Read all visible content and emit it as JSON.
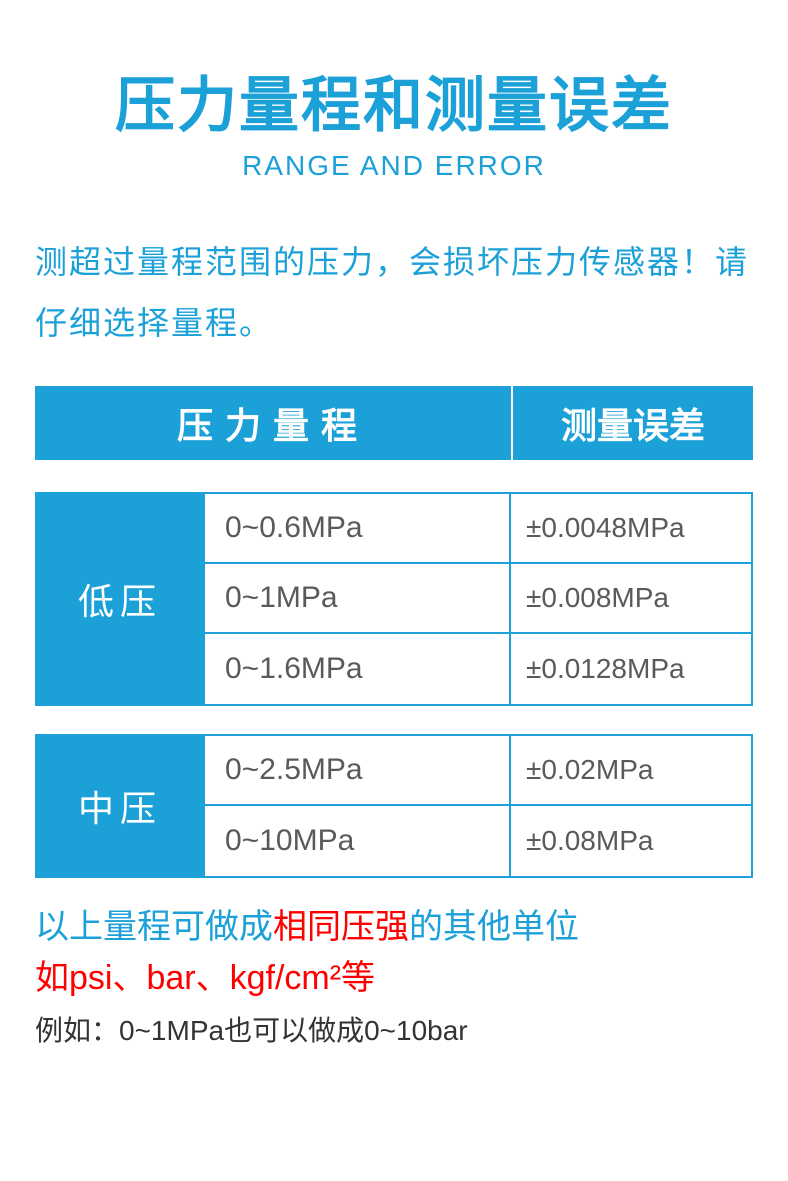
{
  "title": {
    "main": "压力量程和测量误差",
    "sub": "RANGE AND ERROR"
  },
  "warning": "测超过量程范围的压力，会损坏压力传感器！请仔细选择量程。",
  "tableHeader": {
    "range": "压力量程",
    "error": "测量误差"
  },
  "sections": [
    {
      "category": "低压",
      "rows": [
        {
          "range": "0~0.6MPa",
          "error": "±0.0048MPa"
        },
        {
          "range": "0~1MPa",
          "error": "±0.008MPa"
        },
        {
          "range": "0~1.6MPa",
          "error": "±0.0128MPa"
        }
      ]
    },
    {
      "category": "中压",
      "rows": [
        {
          "range": "0~2.5MPa",
          "error": "±0.02MPa"
        },
        {
          "range": "0~10MPa",
          "error": "±0.08MPa"
        }
      ]
    }
  ],
  "footer": {
    "line1a": "以上量程可做成",
    "line1b": "相同压强",
    "line1c": "的其他单位",
    "line2": "如psi、bar、kgf/cm²等",
    "line3": "例如：0~1MPa也可以做成0~10bar"
  },
  "colors": {
    "primary": "#1ba0d8",
    "accent": "#ff0000",
    "text": "#5a5a5a",
    "dark": "#333333",
    "background": "#ffffff"
  }
}
